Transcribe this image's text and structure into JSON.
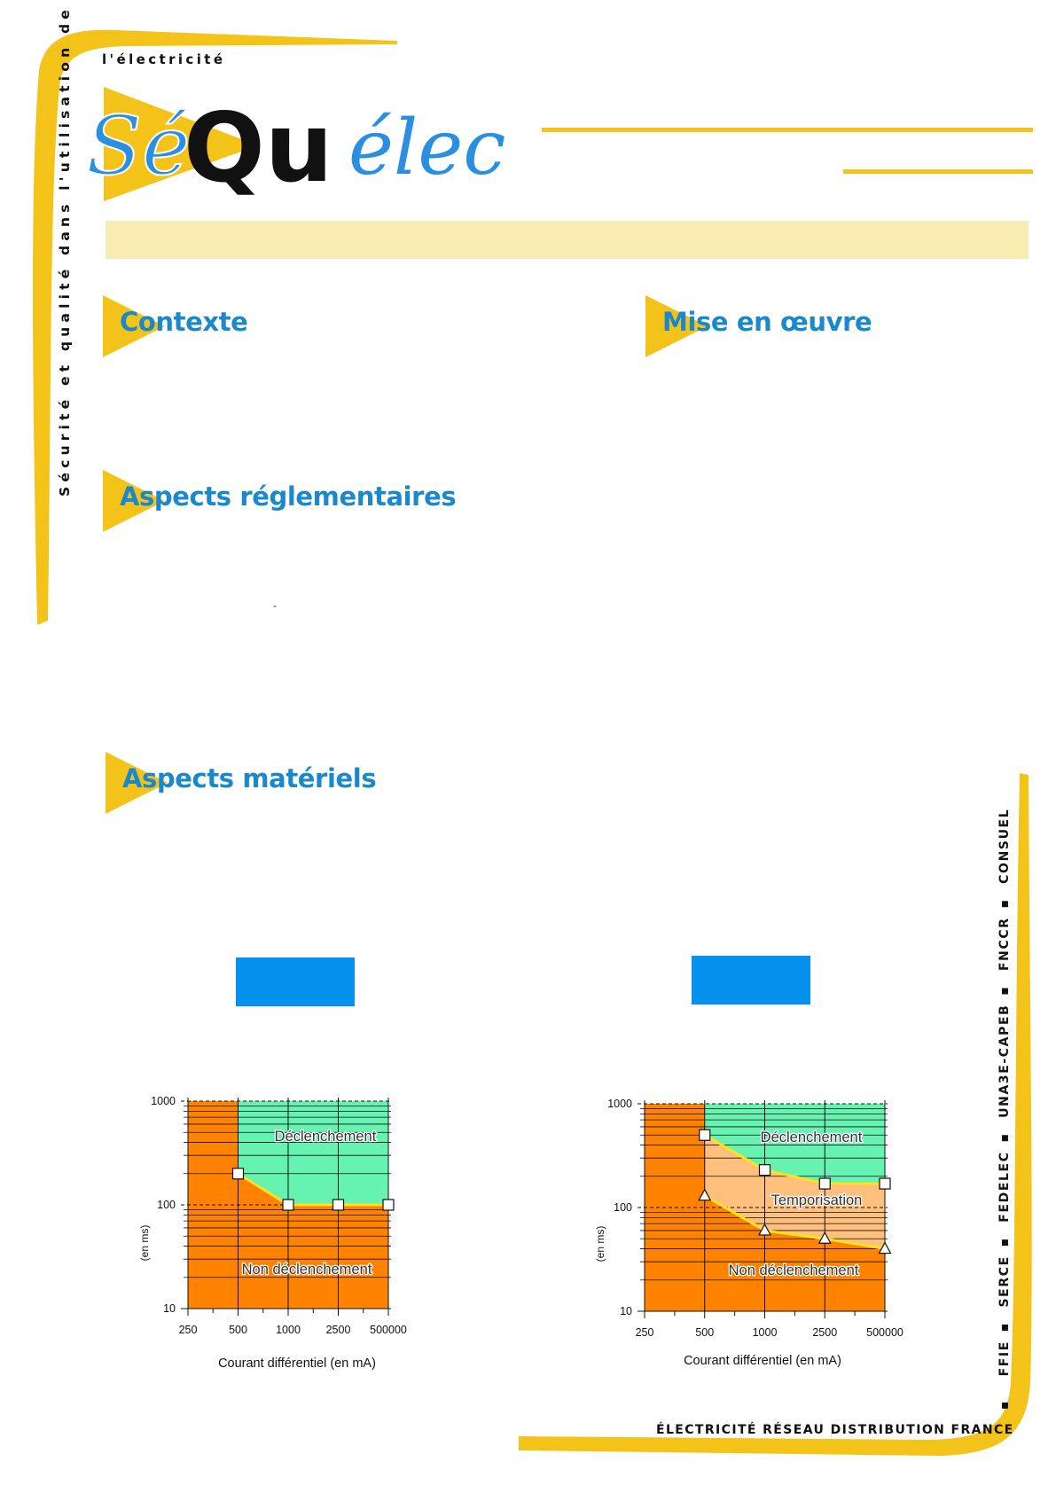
{
  "brand": {
    "tagline_top": "l'électricité",
    "logo_se": "Sé",
    "logo_qu": "Qu",
    "logo_elec": "élec",
    "sidebar_text": "Sécurité et qualité dans l'utilisation de",
    "colors": {
      "yellow": "#f4c31a",
      "blue": "#1a88cc",
      "banner": "#f9ecb0"
    }
  },
  "sections": {
    "contexte": "Contexte",
    "mise_en_oeuvre": "Mise en œuvre",
    "aspects_reglementaires": "Aspects réglementaires",
    "aspects_materiels": "Aspects matériels",
    "stray_mark": "-"
  },
  "partners": [
    "FFIE",
    "SERCE",
    "FEDELEC",
    "UNA3E-CAPEB",
    "FNCCR",
    "CONSUEL"
  ],
  "footer": {
    "text": "ÉLECTRICITÉ RÉSEAU DISTRIBUTION FRANCE"
  },
  "chart_data": [
    {
      "type": "area",
      "x_scale": "categorical",
      "categories": [
        "250",
        "500",
        "1000",
        "2500",
        "500000"
      ],
      "y_scale": "log",
      "ylim": [
        10,
        1000
      ],
      "yticks": [
        "10",
        "100",
        "1000"
      ],
      "xlabel": "Courant différentiel (en mA)",
      "ylabel": "(en ms)",
      "regions": {
        "trip": "Déclenchement",
        "no_trip": "Non déclenchement"
      },
      "series": [
        {
          "name": "trip_curve",
          "marker": "square",
          "x": [
            "500",
            "1000",
            "2500",
            "500000"
          ],
          "values": [
            200,
            100,
            100,
            100
          ]
        }
      ],
      "colors": {
        "trip": "#66f2b1",
        "no_trip": "#ff8200",
        "curve": "#ffe21c"
      }
    },
    {
      "type": "area",
      "x_scale": "categorical",
      "categories": [
        "250",
        "500",
        "1000",
        "2500",
        "500000"
      ],
      "y_scale": "log",
      "ylim": [
        10,
        1000
      ],
      "yticks": [
        "10",
        "100",
        "1000"
      ],
      "xlabel": "Courant différentiel (en mA)",
      "ylabel": "(en ms)",
      "regions": {
        "trip": "Déclenchement",
        "delay": "Temporisation",
        "no_trip": "Non déclenchement"
      },
      "series": [
        {
          "name": "trip_curve",
          "marker": "square",
          "x": [
            "500",
            "1000",
            "2500",
            "500000"
          ],
          "values": [
            500,
            230,
            170,
            170
          ]
        },
        {
          "name": "delay_curve",
          "marker": "triangle",
          "x": [
            "500",
            "1000",
            "2500",
            "500000"
          ],
          "values": [
            130,
            60,
            50,
            40
          ]
        }
      ],
      "colors": {
        "trip": "#66f2b1",
        "delay": "#fec07c",
        "no_trip": "#ff8200",
        "curve": "#ffe21c"
      }
    }
  ]
}
